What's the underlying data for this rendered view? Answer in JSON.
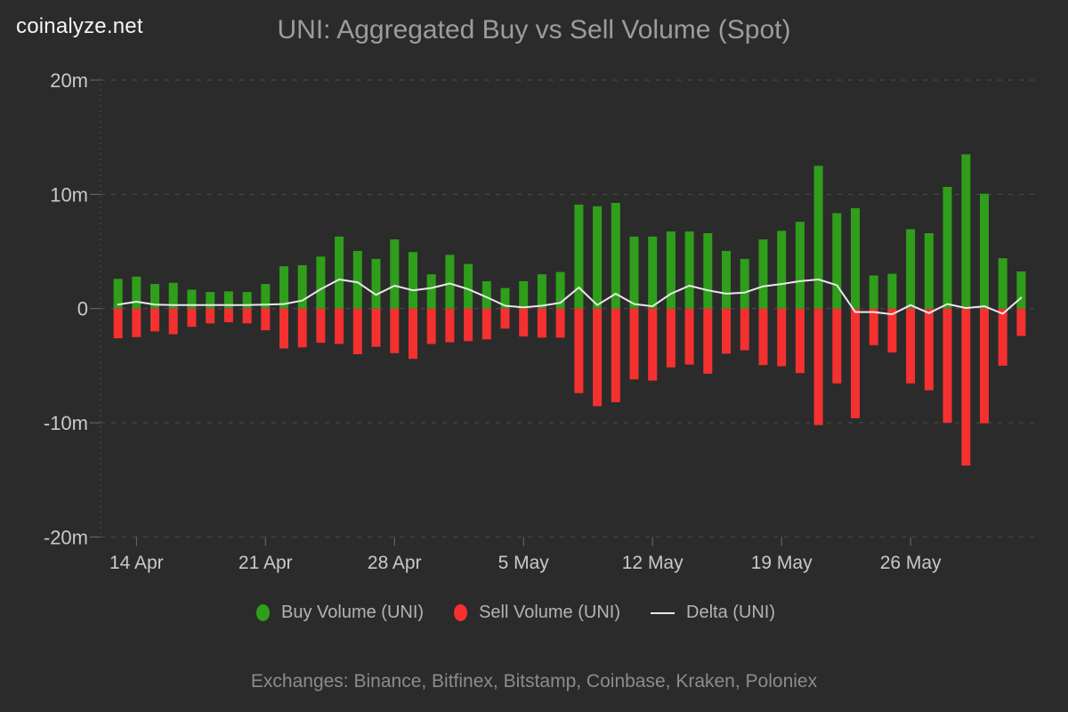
{
  "brand": {
    "logo": "coinalyze.net"
  },
  "header": {
    "title": "UNI: Aggregated Buy vs Sell Volume (Spot)"
  },
  "legend": {
    "buy_label": "Buy Volume (UNI)",
    "sell_label": "Sell Volume (UNI)",
    "delta_label": "Delta (UNI)"
  },
  "footer": {
    "exchanges": "Exchanges: Binance, Bitfinex, Bitstamp, Coinbase, Kraken, Poloniex"
  },
  "colors": {
    "background": "#2b2b2b",
    "buy": "#2f9e1b",
    "sell": "#f43030",
    "delta": "#e9e9e9",
    "grid": "#4d4d4d",
    "tick": "#6e6e6e",
    "axis_text": "#c9c9c9",
    "title_text": "#9c9c9c",
    "legend_text": "#b3b3b3",
    "footer_text": "#8c8c8c"
  },
  "chart_data": {
    "type": "bar",
    "title": "UNI: Aggregated Buy vs Sell Volume (Spot)",
    "unit": "millions of UNI",
    "grid": "horizontal-dashed",
    "legend_position": "bottom",
    "ylim": [
      -20,
      20
    ],
    "yticks": [
      {
        "value": 20,
        "label": "20m"
      },
      {
        "value": 10,
        "label": "10m"
      },
      {
        "value": 0,
        "label": "0"
      },
      {
        "value": -10,
        "label": "-10m"
      },
      {
        "value": -20,
        "label": "-20m"
      }
    ],
    "x": [
      "13 Apr",
      "14 Apr",
      "15 Apr",
      "16 Apr",
      "17 Apr",
      "18 Apr",
      "19 Apr",
      "20 Apr",
      "21 Apr",
      "22 Apr",
      "23 Apr",
      "24 Apr",
      "25 Apr",
      "26 Apr",
      "27 Apr",
      "28 Apr",
      "29 Apr",
      "30 Apr",
      "1 May",
      "2 May",
      "3 May",
      "4 May",
      "5 May",
      "6 May",
      "7 May",
      "8 May",
      "9 May",
      "10 May",
      "11 May",
      "12 May",
      "13 May",
      "14 May",
      "15 May",
      "16 May",
      "17 May",
      "18 May",
      "19 May",
      "20 May",
      "21 May",
      "22 May",
      "23 May",
      "24 May",
      "25 May",
      "26 May",
      "27 May",
      "28 May",
      "29 May",
      "30 May",
      "31 May",
      "1 Jun"
    ],
    "xticks": [
      {
        "index": 1,
        "label": "14 Apr"
      },
      {
        "index": 8,
        "label": "21 Apr"
      },
      {
        "index": 15,
        "label": "28 Apr"
      },
      {
        "index": 22,
        "label": "5 May"
      },
      {
        "index": 29,
        "label": "12 May"
      },
      {
        "index": 36,
        "label": "19 May"
      },
      {
        "index": 43,
        "label": "26 May"
      }
    ],
    "series": [
      {
        "name": "Buy Volume (UNI)",
        "type": "bar",
        "color": "#2f9e1b",
        "values": [
          2.6,
          2.8,
          2.15,
          2.25,
          1.65,
          1.45,
          1.5,
          1.45,
          2.15,
          3.7,
          3.8,
          4.55,
          6.3,
          5.05,
          4.35,
          6.05,
          4.95,
          3.0,
          4.7,
          3.9,
          2.4,
          1.8,
          2.4,
          3.0,
          3.2,
          9.1,
          8.95,
          9.25,
          6.3,
          6.3,
          6.75,
          6.75,
          6.6,
          5.05,
          4.35,
          6.05,
          6.8,
          7.6,
          12.5,
          8.35,
          8.8,
          2.9,
          3.05,
          6.95,
          6.6,
          10.65,
          13.5,
          10.05,
          4.4,
          3.25
        ]
      },
      {
        "name": "Sell Volume (UNI)",
        "type": "bar",
        "color": "#f43030",
        "values": [
          -2.6,
          -2.5,
          -2.0,
          -2.25,
          -1.6,
          -1.3,
          -1.2,
          -1.3,
          -1.9,
          -3.5,
          -3.4,
          -3.0,
          -3.1,
          -4.0,
          -3.35,
          -3.9,
          -4.4,
          -3.1,
          -2.95,
          -2.85,
          -2.7,
          -1.75,
          -2.45,
          -2.55,
          -2.55,
          -7.4,
          -8.55,
          -8.2,
          -6.2,
          -6.3,
          -5.15,
          -4.9,
          -5.7,
          -3.95,
          -3.65,
          -4.95,
          -5.05,
          -5.65,
          -10.2,
          -6.55,
          -9.6,
          -3.2,
          -3.85,
          -6.55,
          -7.15,
          -10.0,
          -13.75,
          -10.05,
          -5.0,
          -2.4
        ]
      },
      {
        "name": "Delta (UNI)",
        "type": "line",
        "color": "#e9e9e9",
        "values": [
          0.35,
          0.6,
          0.35,
          0.3,
          0.3,
          0.3,
          0.3,
          0.3,
          0.35,
          0.4,
          0.7,
          1.7,
          2.55,
          2.3,
          1.2,
          2.0,
          1.6,
          1.8,
          2.2,
          1.7,
          1.0,
          0.25,
          0.1,
          0.25,
          0.5,
          1.85,
          0.3,
          1.3,
          0.4,
          0.2,
          1.3,
          2.0,
          1.6,
          1.3,
          1.4,
          1.95,
          2.15,
          2.4,
          2.55,
          2.05,
          -0.3,
          -0.3,
          -0.5,
          0.3,
          -0.4,
          0.4,
          0.05,
          0.2,
          -0.45,
          0.95
        ]
      }
    ]
  }
}
